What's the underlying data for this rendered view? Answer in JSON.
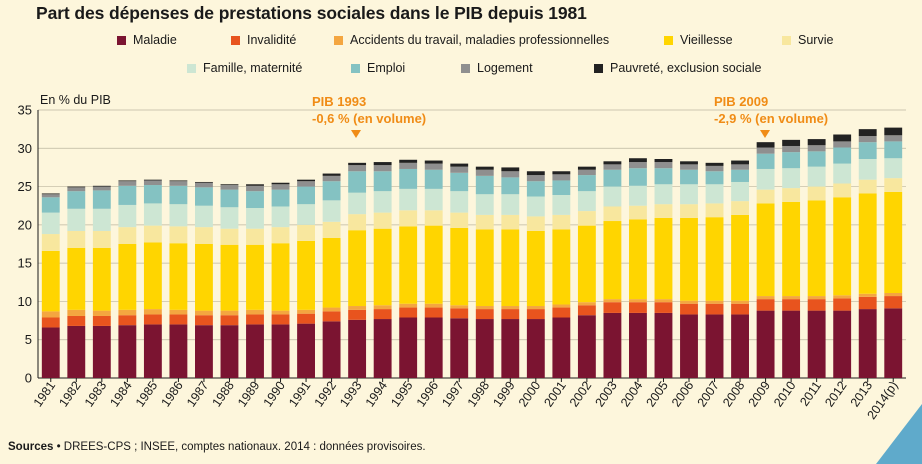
{
  "title": "Part des dépenses de prestations sociales dans le PIB depuis 1981",
  "unit_label": "En % du PIB",
  "annotations": [
    {
      "title": "PIB 1993",
      "text": "-0,6 % (en volume)",
      "year": "1993"
    },
    {
      "title": "PIB 2009",
      "text": "-2,9 % (en volume)",
      "year": "2009"
    }
  ],
  "sources": {
    "label": "Sources",
    "text": " • DREES-CPS ; INSEE, comptes nationaux. 2014 : données provisoires."
  },
  "chart_data": {
    "type": "bar",
    "stacked": true,
    "ylim": [
      0,
      35
    ],
    "yticks": [
      0,
      5,
      10,
      15,
      20,
      25,
      30,
      35
    ],
    "grid": true,
    "categories": [
      "1981",
      "1982",
      "1983",
      "1984",
      "1985",
      "1986",
      "1987",
      "1988",
      "1989",
      "1990",
      "1991",
      "1992",
      "1993",
      "1994",
      "1995",
      "1996",
      "1997",
      "1998",
      "1999",
      "2000",
      "2001",
      "2002",
      "2003",
      "2004",
      "2005",
      "2006",
      "2007",
      "2008",
      "2009",
      "2010",
      "2011",
      "2012",
      "2013",
      "2014(p)"
    ],
    "series": [
      {
        "name": "Maladie",
        "color": "#7B1431",
        "values": [
          6.6,
          6.8,
          6.8,
          6.9,
          7.0,
          7.0,
          6.9,
          6.9,
          7.0,
          7.0,
          7.1,
          7.4,
          7.6,
          7.7,
          7.9,
          7.9,
          7.8,
          7.7,
          7.7,
          7.7,
          7.9,
          8.2,
          8.5,
          8.5,
          8.5,
          8.3,
          8.3,
          8.3,
          8.8,
          8.8,
          8.8,
          8.8,
          9.0,
          9.1
        ]
      },
      {
        "name": "Invalidité",
        "color": "#E8541E",
        "values": [
          1.3,
          1.3,
          1.3,
          1.3,
          1.3,
          1.3,
          1.3,
          1.3,
          1.3,
          1.3,
          1.3,
          1.3,
          1.3,
          1.3,
          1.3,
          1.3,
          1.3,
          1.3,
          1.3,
          1.3,
          1.3,
          1.3,
          1.4,
          1.4,
          1.4,
          1.4,
          1.4,
          1.4,
          1.5,
          1.5,
          1.5,
          1.6,
          1.6,
          1.6
        ]
      },
      {
        "name": "Accidents du travail, maladies professionnelles",
        "color": "#F4A640",
        "values": [
          0.8,
          0.8,
          0.7,
          0.7,
          0.7,
          0.6,
          0.6,
          0.6,
          0.6,
          0.5,
          0.5,
          0.5,
          0.5,
          0.5,
          0.5,
          0.5,
          0.4,
          0.4,
          0.4,
          0.4,
          0.4,
          0.4,
          0.4,
          0.4,
          0.4,
          0.4,
          0.4,
          0.4,
          0.4,
          0.4,
          0.4,
          0.4,
          0.4,
          0.4
        ]
      },
      {
        "name": "Vieillesse",
        "color": "#FFD500",
        "values": [
          7.9,
          8.1,
          8.2,
          8.6,
          8.7,
          8.7,
          8.7,
          8.6,
          8.5,
          8.8,
          9.0,
          9.1,
          9.9,
          10.0,
          10.1,
          10.2,
          10.1,
          10.0,
          10.0,
          9.8,
          9.8,
          10.0,
          10.2,
          10.4,
          10.6,
          10.8,
          10.9,
          11.2,
          12.1,
          12.3,
          12.5,
          12.8,
          13.1,
          13.2
        ]
      },
      {
        "name": "Survie",
        "color": "#F8E79E",
        "values": [
          2.2,
          2.2,
          2.2,
          2.2,
          2.2,
          2.2,
          2.2,
          2.1,
          2.1,
          2.1,
          2.1,
          2.1,
          2.1,
          2.1,
          2.1,
          2.0,
          2.0,
          1.9,
          1.9,
          1.9,
          1.9,
          1.9,
          1.9,
          1.8,
          1.8,
          1.8,
          1.8,
          1.8,
          1.8,
          1.8,
          1.8,
          1.8,
          1.8,
          1.8
        ]
      },
      {
        "name": "Famille, maternité",
        "color": "#CDE6D3",
        "values": [
          2.8,
          2.9,
          2.9,
          2.9,
          2.9,
          2.9,
          2.8,
          2.8,
          2.7,
          2.7,
          2.7,
          2.8,
          2.8,
          2.8,
          2.8,
          2.8,
          2.8,
          2.7,
          2.7,
          2.6,
          2.6,
          2.6,
          2.6,
          2.6,
          2.6,
          2.6,
          2.5,
          2.5,
          2.7,
          2.6,
          2.6,
          2.6,
          2.7,
          2.6
        ]
      },
      {
        "name": "Emploi",
        "color": "#84C2C2",
        "values": [
          2.0,
          2.3,
          2.4,
          2.5,
          2.4,
          2.4,
          2.4,
          2.3,
          2.2,
          2.2,
          2.3,
          2.5,
          2.8,
          2.6,
          2.6,
          2.5,
          2.4,
          2.4,
          2.2,
          2.0,
          1.9,
          2.1,
          2.2,
          2.3,
          2.1,
          1.9,
          1.7,
          1.6,
          2.0,
          2.1,
          2.0,
          2.1,
          2.2,
          2.2
        ]
      },
      {
        "name": "Logement",
        "color": "#8F8F8F",
        "values": [
          0.4,
          0.5,
          0.5,
          0.6,
          0.6,
          0.6,
          0.6,
          0.6,
          0.7,
          0.7,
          0.7,
          0.7,
          0.8,
          0.8,
          0.8,
          0.8,
          0.8,
          0.8,
          0.8,
          0.8,
          0.8,
          0.7,
          0.7,
          0.8,
          0.8,
          0.7,
          0.7,
          0.7,
          0.8,
          0.8,
          0.8,
          0.8,
          0.8,
          0.8
        ]
      },
      {
        "name": "Pauvreté, exclusion sociale",
        "color": "#222222",
        "values": [
          0.1,
          0.1,
          0.1,
          0.1,
          0.1,
          0.1,
          0.1,
          0.1,
          0.2,
          0.2,
          0.2,
          0.3,
          0.3,
          0.4,
          0.4,
          0.4,
          0.4,
          0.4,
          0.5,
          0.5,
          0.4,
          0.4,
          0.4,
          0.5,
          0.4,
          0.4,
          0.4,
          0.5,
          0.7,
          0.8,
          0.8,
          0.9,
          0.9,
          1.0
        ]
      }
    ]
  }
}
